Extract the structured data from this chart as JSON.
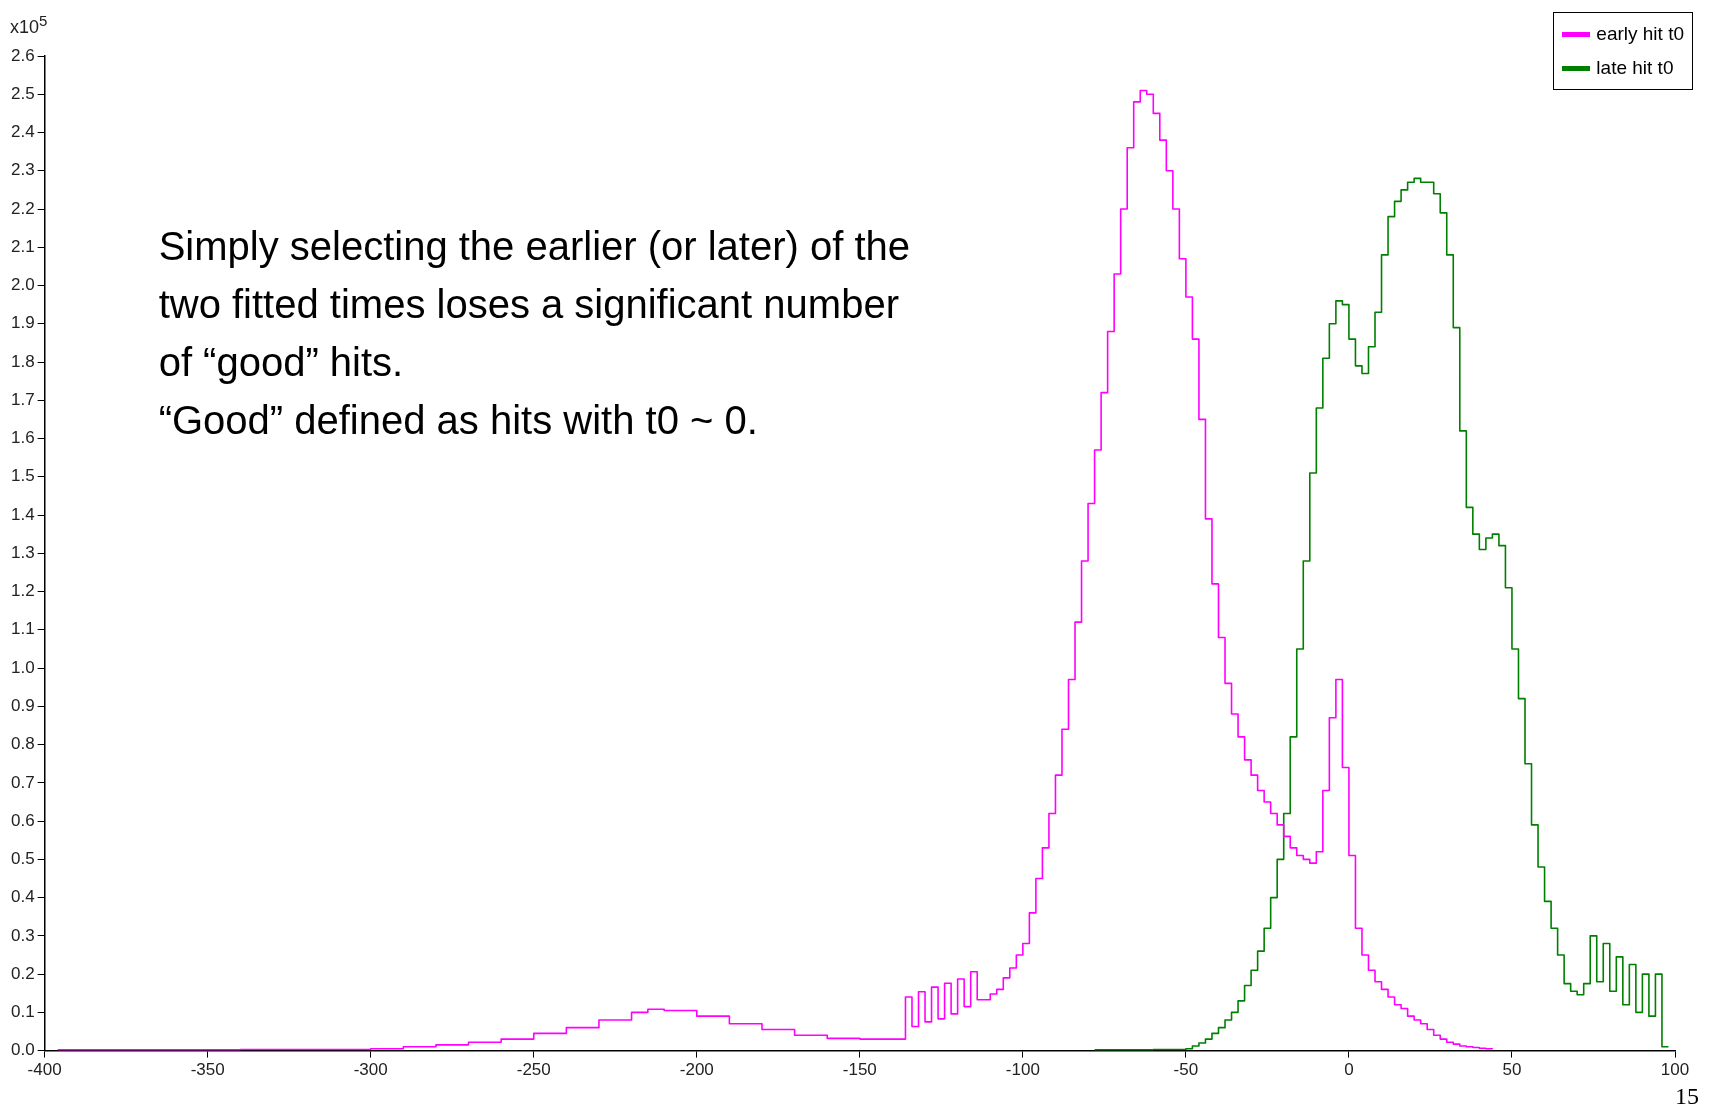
{
  "chart_data": {
    "type": "step",
    "ylabel": "x10$^{5}$",
    "annotations": [
      "Simply selecting the earlier (or later) of the",
      "two fitted times loses a significant number",
      "of “good” hits.",
      "“Good” defined as hits with t0 ~ 0.",
      "15"
    ],
    "xlim": [
      -400,
      100
    ],
    "xticks": [
      -400,
      -350,
      -300,
      -250,
      -200,
      -150,
      -100,
      -50,
      0,
      50,
      100
    ],
    "ylim": [
      0,
      2.6
    ],
    "yticks": [
      {
        "value": 0,
        "label": "0.0"
      },
      0.1,
      0.2,
      0.3,
      0.4,
      0.5,
      0.6,
      0.7,
      0.8,
      0.9,
      {
        "value": 1,
        "label": "1.0"
      },
      1.1,
      1.2,
      1.3,
      1.4,
      1.5,
      1.6,
      1.7,
      1.8,
      1.9,
      {
        "value": 2,
        "label": "2.0"
      },
      2.1,
      2.2,
      2.3,
      2.4,
      2.5,
      2.6
    ],
    "legend": "top right",
    "marker": "none",
    "series": [
      {
        "name": "early hit t0",
        "color": "#ff00ff",
        "x": [
          -396,
          -340,
          -300,
          -290,
          -280,
          -270,
          -260,
          -250,
          -240,
          -230,
          -220,
          -215,
          -210,
          -200,
          -190,
          -180,
          -170,
          -160,
          -150,
          -136,
          -134,
          -132,
          -130,
          -128,
          -126,
          -124,
          -122,
          -120,
          -118,
          -116,
          -114,
          -110,
          -108,
          -106,
          -104,
          -102,
          -100,
          -98,
          -96,
          -94,
          -92,
          -90,
          -88,
          -86,
          -84,
          -82,
          -80,
          -78,
          -76,
          -74,
          -72,
          -70,
          -68,
          -66,
          -64,
          -62,
          -60,
          -58,
          -56,
          -54,
          -52,
          -50,
          -48,
          -46,
          -44,
          -42,
          -40,
          -38,
          -36,
          -34,
          -32,
          -30,
          -28,
          -26,
          -24,
          -22,
          -20,
          -18,
          -16,
          -14,
          -12,
          -10,
          -8,
          -6,
          -4,
          -2,
          0,
          2,
          4,
          6,
          8,
          10,
          12,
          14,
          16,
          18,
          20,
          22,
          24,
          26,
          28,
          30,
          32,
          34,
          36,
          38,
          40,
          42,
          44
        ],
        "values": [
          0.002,
          0.003,
          0.005,
          0.01,
          0.015,
          0.022,
          0.03,
          0.045,
          0.06,
          0.08,
          0.1,
          0.108,
          0.105,
          0.09,
          0.07,
          0.055,
          0.04,
          0.032,
          0.03,
          0.14,
          0.063,
          0.154,
          0.075,
          0.166,
          0.083,
          0.176,
          0.096,
          0.187,
          0.115,
          0.206,
          0.133,
          0.148,
          0.16,
          0.19,
          0.216,
          0.25,
          0.28,
          0.36,
          0.45,
          0.53,
          0.62,
          0.72,
          0.84,
          0.97,
          1.12,
          1.28,
          1.43,
          1.57,
          1.72,
          1.88,
          2.03,
          2.2,
          2.36,
          2.48,
          2.51,
          2.5,
          2.45,
          2.38,
          2.3,
          2.2,
          2.07,
          1.97,
          1.86,
          1.65,
          1.39,
          1.22,
          1.08,
          0.96,
          0.88,
          0.82,
          0.76,
          0.72,
          0.68,
          0.65,
          0.62,
          0.59,
          0.56,
          0.53,
          0.51,
          0.5,
          0.49,
          0.52,
          0.68,
          0.87,
          0.97,
          0.74,
          0.51,
          0.32,
          0.25,
          0.21,
          0.18,
          0.16,
          0.14,
          0.12,
          0.11,
          0.09,
          0.08,
          0.07,
          0.055,
          0.04,
          0.03,
          0.022,
          0.017,
          0.012,
          0.01,
          0.008,
          0.006,
          0.005,
          0.004
        ]
      },
      {
        "name": "late hit t0",
        "color": "#008000",
        "x": [
          -78,
          -60,
          -50,
          -48,
          -46,
          -44,
          -42,
          -40,
          -38,
          -36,
          -34,
          -32,
          -30,
          -28,
          -26,
          -24,
          -22,
          -20,
          -18,
          -16,
          -14,
          -12,
          -10,
          -8,
          -6,
          -4,
          -2,
          0,
          2,
          4,
          6,
          8,
          10,
          12,
          14,
          16,
          18,
          20,
          22,
          24,
          26,
          28,
          30,
          32,
          34,
          36,
          38,
          40,
          42,
          44,
          46,
          48,
          50,
          52,
          54,
          56,
          58,
          60,
          62,
          64,
          66,
          68,
          70,
          72,
          74,
          76,
          78,
          80,
          82,
          84,
          86,
          88,
          90,
          92,
          94,
          96,
          98
        ],
        "values": [
          0.002,
          0.003,
          0.005,
          0.012,
          0.02,
          0.03,
          0.045,
          0.06,
          0.08,
          0.1,
          0.13,
          0.17,
          0.21,
          0.26,
          0.32,
          0.4,
          0.5,
          0.62,
          0.82,
          1.05,
          1.28,
          1.51,
          1.68,
          1.81,
          1.9,
          1.96,
          1.95,
          1.86,
          1.79,
          1.77,
          1.84,
          1.93,
          2.08,
          2.18,
          2.22,
          2.25,
          2.27,
          2.28,
          2.27,
          2.27,
          2.24,
          2.19,
          2.08,
          1.89,
          1.62,
          1.42,
          1.35,
          1.31,
          1.34,
          1.35,
          1.32,
          1.21,
          1.05,
          0.92,
          0.75,
          0.59,
          0.48,
          0.39,
          0.32,
          0.25,
          0.175,
          0.155,
          0.146,
          0.175,
          0.3,
          0.18,
          0.28,
          0.155,
          0.245,
          0.12,
          0.225,
          0.1,
          0.2,
          0.09,
          0.2,
          0.01,
          0.01
        ]
      }
    ]
  }
}
